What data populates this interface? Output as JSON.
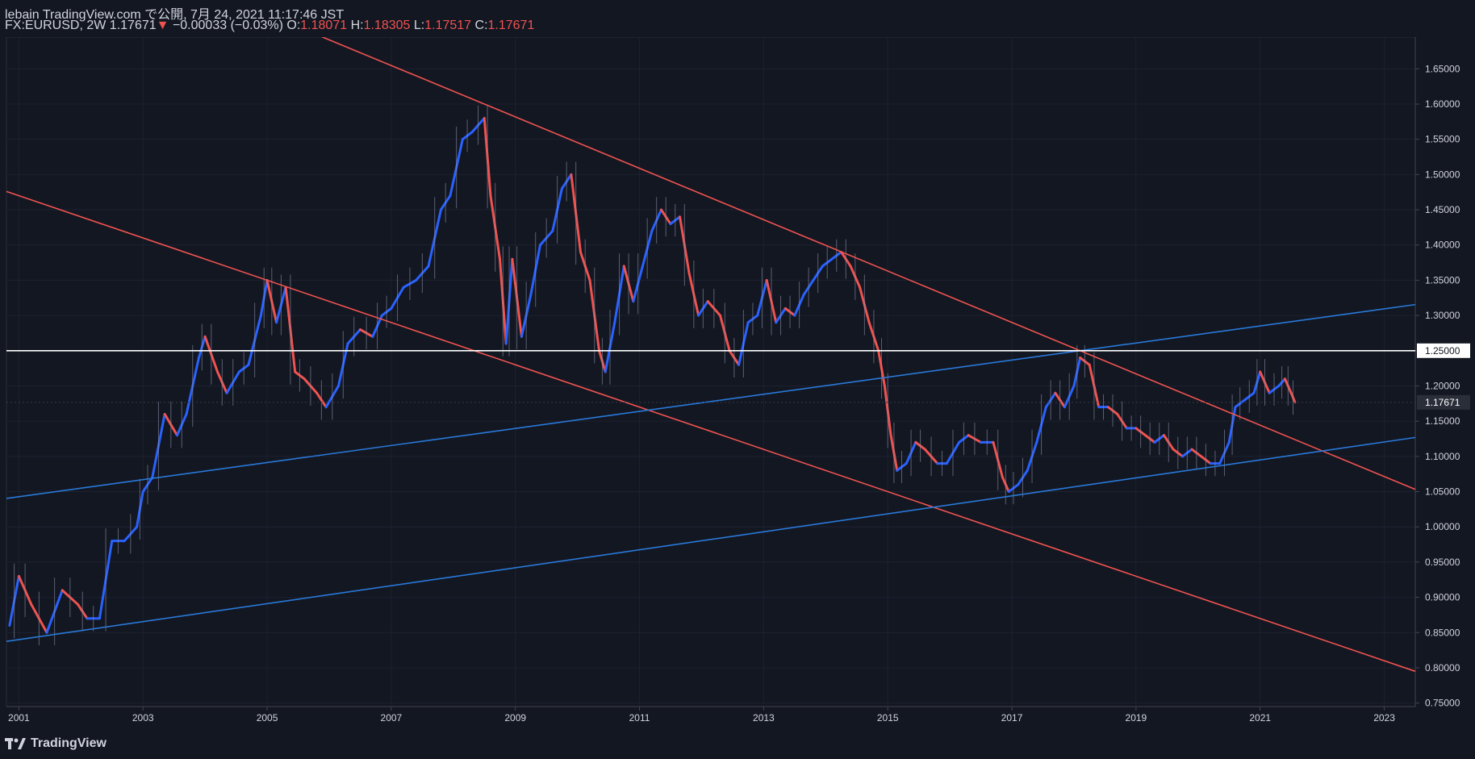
{
  "header": {
    "published_line": "lebain TradingView.com で公開, 7月 24, 2021 11:17:46 JST",
    "symbol": "FX:EURUSD, 2W",
    "last_price": "1.17671",
    "change_arrow": "▼",
    "change": "−0.00033 (−0.03%)",
    "o_label": "O:",
    "o_value": "1.18071",
    "h_label": "H:",
    "h_value": "1.18305",
    "l_label": "L:",
    "l_value": "1.17517",
    "c_label": "C:",
    "c_value": "1.17671"
  },
  "footer": {
    "brand": "TradingView"
  },
  "colors": {
    "background": "#131722",
    "up": "#2962ff",
    "down": "#ef5350",
    "blue_line": "#2979d9",
    "red_line": "#ef5350",
    "level_line": "#ffffff",
    "text": "#d1d4dc"
  },
  "chart_data": {
    "type": "line",
    "x_ticks": [
      "2001",
      "2003",
      "2005",
      "2007",
      "2009",
      "2011",
      "2013",
      "2015",
      "2017",
      "2019",
      "2021",
      "2023"
    ],
    "y_ticks": [
      "0.75000",
      "0.80000",
      "0.85000",
      "0.90000",
      "0.95000",
      "1.00000",
      "1.05000",
      "1.10000",
      "1.15000",
      "1.20000",
      "1.25000",
      "1.30000",
      "1.35000",
      "1.40000",
      "1.45000",
      "1.50000",
      "1.55000",
      "1.60000",
      "1.65000"
    ],
    "ylim": [
      0.745,
      1.695
    ],
    "xlim": [
      2000.8,
      2023.5
    ],
    "current_price_label": "1.17671",
    "level_label": "1.25000",
    "series": [
      {
        "values": [
          [
            2000.85,
            0.86
          ],
          [
            2001.0,
            0.93
          ],
          [
            2001.2,
            0.89
          ],
          [
            2001.45,
            0.85
          ],
          [
            2001.7,
            0.91
          ],
          [
            2001.95,
            0.89
          ],
          [
            2002.1,
            0.87
          ],
          [
            2002.3,
            0.87
          ],
          [
            2002.5,
            0.98
          ],
          [
            2002.7,
            0.98
          ],
          [
            2002.9,
            1.0
          ],
          [
            2003.0,
            1.05
          ],
          [
            2003.15,
            1.07
          ],
          [
            2003.35,
            1.16
          ],
          [
            2003.55,
            1.13
          ],
          [
            2003.7,
            1.16
          ],
          [
            2003.9,
            1.24
          ],
          [
            2004.0,
            1.27
          ],
          [
            2004.2,
            1.22
          ],
          [
            2004.35,
            1.19
          ],
          [
            2004.55,
            1.22
          ],
          [
            2004.7,
            1.23
          ],
          [
            2004.9,
            1.3
          ],
          [
            2005.0,
            1.35
          ],
          [
            2005.15,
            1.29
          ],
          [
            2005.3,
            1.34
          ],
          [
            2005.45,
            1.22
          ],
          [
            2005.6,
            1.21
          ],
          [
            2005.8,
            1.19
          ],
          [
            2005.95,
            1.17
          ],
          [
            2006.15,
            1.2
          ],
          [
            2006.3,
            1.26
          ],
          [
            2006.5,
            1.28
          ],
          [
            2006.7,
            1.27
          ],
          [
            2006.85,
            1.3
          ],
          [
            2007.0,
            1.31
          ],
          [
            2007.2,
            1.34
          ],
          [
            2007.4,
            1.35
          ],
          [
            2007.6,
            1.37
          ],
          [
            2007.8,
            1.45
          ],
          [
            2007.95,
            1.47
          ],
          [
            2008.15,
            1.55
          ],
          [
            2008.3,
            1.56
          ],
          [
            2008.5,
            1.58
          ],
          [
            2008.6,
            1.47
          ],
          [
            2008.75,
            1.38
          ],
          [
            2008.85,
            1.26
          ],
          [
            2008.95,
            1.38
          ],
          [
            2009.1,
            1.27
          ],
          [
            2009.25,
            1.33
          ],
          [
            2009.4,
            1.4
          ],
          [
            2009.6,
            1.42
          ],
          [
            2009.75,
            1.48
          ],
          [
            2009.9,
            1.5
          ],
          [
            2010.05,
            1.39
          ],
          [
            2010.2,
            1.35
          ],
          [
            2010.35,
            1.25
          ],
          [
            2010.45,
            1.22
          ],
          [
            2010.6,
            1.29
          ],
          [
            2010.75,
            1.37
          ],
          [
            2010.9,
            1.32
          ],
          [
            2011.05,
            1.37
          ],
          [
            2011.2,
            1.42
          ],
          [
            2011.35,
            1.45
          ],
          [
            2011.5,
            1.43
          ],
          [
            2011.65,
            1.44
          ],
          [
            2011.8,
            1.36
          ],
          [
            2011.95,
            1.3
          ],
          [
            2012.1,
            1.32
          ],
          [
            2012.3,
            1.3
          ],
          [
            2012.45,
            1.25
          ],
          [
            2012.6,
            1.23
          ],
          [
            2012.75,
            1.29
          ],
          [
            2012.9,
            1.3
          ],
          [
            2013.05,
            1.35
          ],
          [
            2013.2,
            1.29
          ],
          [
            2013.35,
            1.31
          ],
          [
            2013.5,
            1.3
          ],
          [
            2013.65,
            1.33
          ],
          [
            2013.8,
            1.35
          ],
          [
            2013.95,
            1.37
          ],
          [
            2014.1,
            1.38
          ],
          [
            2014.25,
            1.39
          ],
          [
            2014.4,
            1.37
          ],
          [
            2014.55,
            1.34
          ],
          [
            2014.7,
            1.29
          ],
          [
            2014.85,
            1.25
          ],
          [
            2014.95,
            1.2
          ],
          [
            2015.05,
            1.13
          ],
          [
            2015.15,
            1.08
          ],
          [
            2015.3,
            1.09
          ],
          [
            2015.45,
            1.12
          ],
          [
            2015.6,
            1.11
          ],
          [
            2015.8,
            1.09
          ],
          [
            2015.95,
            1.09
          ],
          [
            2016.15,
            1.12
          ],
          [
            2016.3,
            1.13
          ],
          [
            2016.5,
            1.12
          ],
          [
            2016.7,
            1.12
          ],
          [
            2016.85,
            1.07
          ],
          [
            2016.95,
            1.05
          ],
          [
            2017.1,
            1.06
          ],
          [
            2017.25,
            1.08
          ],
          [
            2017.4,
            1.12
          ],
          [
            2017.55,
            1.17
          ],
          [
            2017.7,
            1.19
          ],
          [
            2017.85,
            1.17
          ],
          [
            2018.0,
            1.2
          ],
          [
            2018.1,
            1.24
          ],
          [
            2018.25,
            1.23
          ],
          [
            2018.4,
            1.17
          ],
          [
            2018.55,
            1.17
          ],
          [
            2018.7,
            1.16
          ],
          [
            2018.85,
            1.14
          ],
          [
            2019.0,
            1.14
          ],
          [
            2019.15,
            1.13
          ],
          [
            2019.3,
            1.12
          ],
          [
            2019.45,
            1.13
          ],
          [
            2019.6,
            1.11
          ],
          [
            2019.75,
            1.1
          ],
          [
            2019.9,
            1.11
          ],
          [
            2020.05,
            1.1
          ],
          [
            2020.2,
            1.09
          ],
          [
            2020.35,
            1.09
          ],
          [
            2020.5,
            1.12
          ],
          [
            2020.6,
            1.17
          ],
          [
            2020.75,
            1.18
          ],
          [
            2020.9,
            1.19
          ],
          [
            2021.0,
            1.22
          ],
          [
            2021.15,
            1.19
          ],
          [
            2021.3,
            1.2
          ],
          [
            2021.4,
            1.21
          ],
          [
            2021.5,
            1.19
          ],
          [
            2021.56,
            1.177
          ]
        ]
      }
    ],
    "trend_lines": [
      {
        "color": "red",
        "x1": 2005.0,
        "y1": 1.35,
        "x2": 2008.5,
        "y2": 1.245
      },
      {
        "color": "red",
        "x1": 2008.5,
        "y1": 1.6,
        "x2": 2018.1,
        "y2": 1.25
      },
      {
        "color": "blue",
        "x1": 2001.0,
        "y1": 0.84,
        "x2": 2021.0,
        "y2": 1.095
      },
      {
        "color": "blue",
        "x1": 2003.0,
        "y1": 1.067,
        "x2": 2018.1,
        "y2": 1.25
      }
    ],
    "horizontal_lines": [
      1.25
    ]
  }
}
